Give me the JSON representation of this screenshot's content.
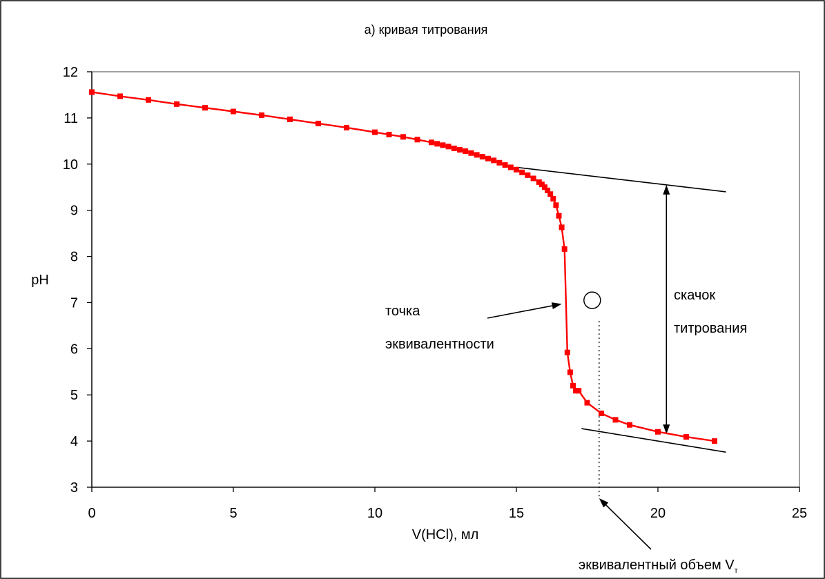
{
  "colors": {
    "series": "#ff0000",
    "axes": "#000000",
    "plot_border": "#808080"
  },
  "chart_data": {
    "type": "line",
    "title": "а) кривая титрования",
    "xlabel": "V(HCl), мл",
    "ylabel": "pH",
    "xlim": [
      0,
      25
    ],
    "ylim": [
      3,
      12
    ],
    "x_ticks": [
      "0",
      "5",
      "10",
      "15",
      "20",
      "25"
    ],
    "y_ticks": [
      "3",
      "4",
      "5",
      "6",
      "7",
      "8",
      "9",
      "10",
      "11",
      "12"
    ],
    "grid": false,
    "legend": "none",
    "markers": "square",
    "series": [
      {
        "x": [
          0,
          1,
          2,
          3,
          4,
          5,
          6,
          7,
          8,
          9,
          10,
          10.5,
          11,
          11.5,
          12,
          12.2,
          12.4,
          12.6,
          12.8,
          13,
          13.2,
          13.4,
          13.6,
          13.8,
          14,
          14.2,
          14.4,
          14.6,
          14.8,
          15,
          15.2,
          15.4,
          15.6,
          15.8,
          15.9,
          16,
          16.1,
          16.2,
          16.3,
          16.4,
          16.5,
          16.6,
          16.7,
          16.8,
          16.9,
          17,
          17.1,
          17.2,
          17.5,
          18,
          18.5,
          19,
          20,
          21,
          22
        ],
        "y": [
          11.56,
          11.47,
          11.39,
          11.3,
          11.22,
          11.14,
          11.06,
          10.97,
          10.88,
          10.79,
          10.69,
          10.64,
          10.59,
          10.53,
          10.47,
          10.44,
          10.41,
          10.38,
          10.34,
          10.31,
          10.28,
          10.24,
          10.2,
          10.16,
          10.12,
          10.08,
          10.03,
          9.98,
          9.93,
          9.88,
          9.82,
          9.76,
          9.69,
          9.61,
          9.56,
          9.5,
          9.43,
          9.35,
          9.25,
          9.11,
          8.88,
          8.63,
          8.16,
          5.92,
          5.49,
          5.2,
          5.09,
          5.09,
          4.83,
          4.6,
          4.46,
          4.35,
          4.2,
          4.09,
          4.0
        ]
      }
    ],
    "annotations": {
      "equivalence_point_line1": "точка",
      "equivalence_point_line2": "эквивалентности",
      "jump_line1": "скачок",
      "jump_line2": "титрования",
      "volume_text": "эквивалентный объем V",
      "volume_subscript": "т"
    },
    "equivalence_point": {
      "x": 17.8,
      "y": 7.05
    },
    "tangents": [
      {
        "from": [
          15,
          9.93
        ],
        "to": [
          22.4,
          9.4
        ]
      },
      {
        "from": [
          17.3,
          4.27
        ],
        "to": [
          22.4,
          3.76
        ]
      }
    ],
    "jump_arrow": {
      "x": 20.3,
      "y_from": 4.15,
      "y_to": 9.55
    }
  }
}
